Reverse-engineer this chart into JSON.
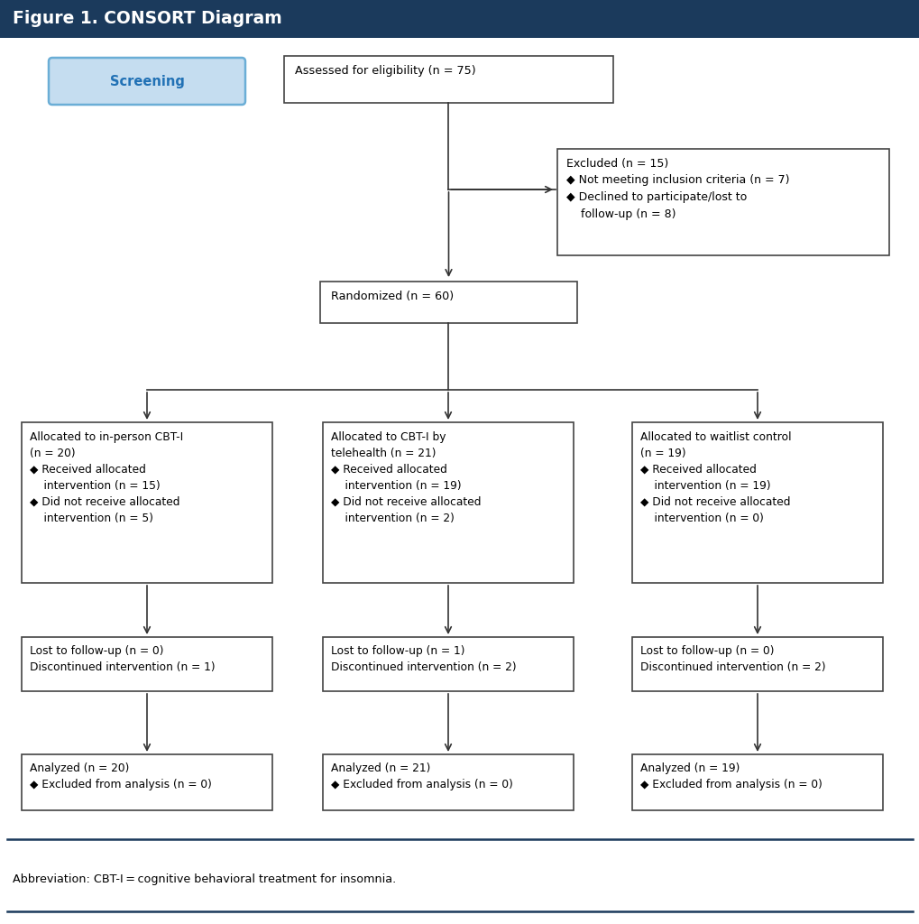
{
  "title": "Figure 1. CONSORT Diagram",
  "title_bg": "#1b3a5c",
  "title_color": "#ffffff",
  "title_fontsize": 13,
  "screening_label": "Screening",
  "screening_bg": "#c5ddf0",
  "screening_border": "#6baed6",
  "screening_text_color": "#2171b5",
  "box_bg": "#ffffff",
  "box_border": "#444444",
  "abbreviation": "Abbreviation: CBT-I = cognitive behavioral treatment for insomnia.",
  "eligibility_text": "Assessed for eligibility (n = 75)",
  "excluded_text": "Excluded (n = 15)\n◆ Not meeting inclusion criteria (n = 7)\n◆ Declined to participate/lost to\n    follow-up (n = 8)",
  "randomized_text": "Randomized (n = 60)",
  "col1_alloc": "Allocated to in-person CBT-I\n(n = 20)\n◆ Received allocated\n    intervention (n = 15)\n◆ Did not receive allocated\n    intervention (n = 5)",
  "col2_alloc": "Allocated to CBT-I by\ntelehealth (n = 21)\n◆ Received allocated\n    intervention (n = 19)\n◆ Did not receive allocated\n    intervention (n = 2)",
  "col3_alloc": "Allocated to waitlist control\n(n = 19)\n◆ Received allocated\n    intervention (n = 19)\n◆ Did not receive allocated\n    intervention (n = 0)",
  "col1_followup": "Lost to follow-up (n = 0)\nDiscontinued intervention (n = 1)",
  "col2_followup": "Lost to follow-up (n = 1)\nDiscontinued intervention (n = 2)",
  "col3_followup": "Lost to follow-up (n = 0)\nDiscontinued intervention (n = 2)",
  "col1_analyzed": "Analyzed (n = 20)\n◆ Excluded from analysis (n = 0)",
  "col2_analyzed": "Analyzed (n = 21)\n◆ Excluded from analysis (n = 0)",
  "col3_analyzed": "Analyzed (n = 19)\n◆ Excluded from analysis (n = 0)",
  "fig_w": 10.2,
  "fig_h": 10.24,
  "dpi": 100
}
